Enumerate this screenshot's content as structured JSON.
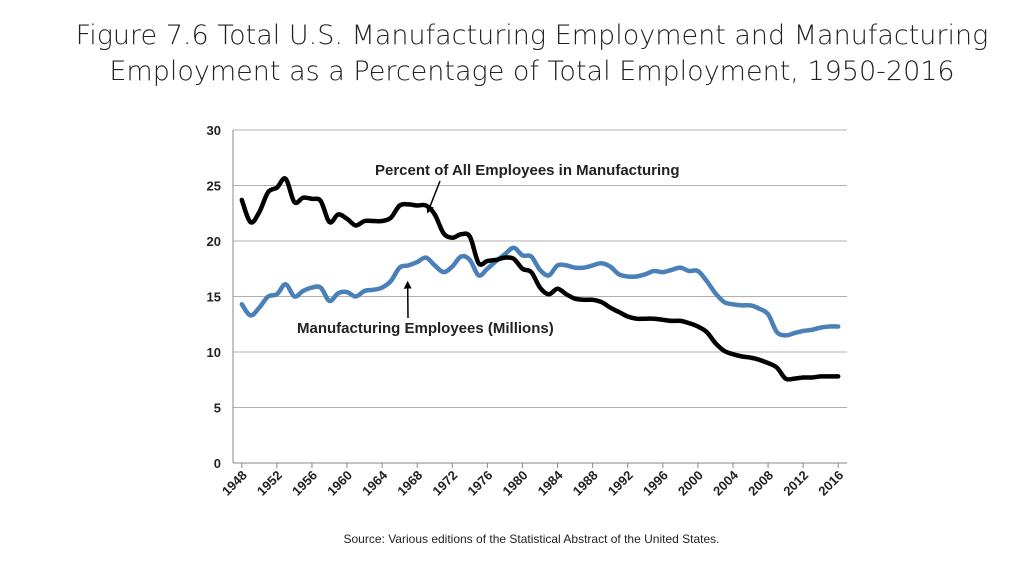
{
  "title_line1": "Figure 7.6 Total U.S. Manufacturing Employment and Manufacturing",
  "title_line2": "Employment as a Percentage of Total Employment, 1950-2016",
  "source": "Source: Various editions of the Statistical Abstract of the United States.",
  "colors": {
    "percent_series": "#000000",
    "employees_series": "#4a80b8",
    "grid": "#b0b0b0"
  },
  "chart_data": {
    "type": "line",
    "title": "Figure 7.6 Total U.S. Manufacturing Employment and Manufacturing Employment as a Percentage of Total Employment, 1950-2016",
    "xlabel": "",
    "ylabel": "",
    "xlim": [
      1947,
      2017
    ],
    "ylim": [
      0,
      30
    ],
    "y_ticks": [
      0,
      5,
      10,
      15,
      20,
      25,
      30
    ],
    "x_ticks": [
      "1948",
      "1952",
      "1956",
      "1960",
      "1964",
      "1968",
      "1972",
      "1976",
      "1980",
      "1984",
      "1988",
      "1992",
      "1996",
      "2000",
      "2004",
      "2008",
      "2012",
      "2016"
    ],
    "grid": true,
    "annotations": [
      {
        "text": "Percent of All Employees in Manufacturing",
        "points_to": {
          "x": 1969,
          "y": 23
        }
      },
      {
        "text": "Manufacturing Employees (Millions)",
        "points_to": {
          "x": 1966.8,
          "y": 16.6
        }
      }
    ],
    "series": [
      {
        "name": "Percent of All Employees in Manufacturing",
        "x": [
          1948,
          1949,
          1950,
          1951,
          1952,
          1953,
          1954,
          1955,
          1956,
          1957,
          1958,
          1959,
          1960,
          1961,
          1962,
          1963,
          1964,
          1965,
          1966,
          1967,
          1968,
          1969,
          1970,
          1971,
          1972,
          1973,
          1974,
          1975,
          1976,
          1977,
          1978,
          1979,
          1980,
          1981,
          1982,
          1983,
          1984,
          1985,
          1986,
          1987,
          1988,
          1989,
          1990,
          1991,
          1992,
          1993,
          1994,
          1995,
          1996,
          1997,
          1998,
          1999,
          2000,
          2001,
          2002,
          2003,
          2004,
          2005,
          2006,
          2007,
          2008,
          2009,
          2010,
          2011,
          2012,
          2013,
          2014,
          2015,
          2016
        ],
        "values": [
          23.7,
          21.7,
          22.6,
          24.4,
          24.8,
          25.6,
          23.5,
          23.9,
          23.8,
          23.6,
          21.7,
          22.4,
          22.0,
          21.4,
          21.8,
          21.8,
          21.8,
          22.1,
          23.2,
          23.3,
          23.2,
          23.2,
          22.4,
          20.7,
          20.3,
          20.6,
          20.4,
          18.0,
          18.2,
          18.3,
          18.5,
          18.4,
          17.5,
          17.2,
          15.8,
          15.2,
          15.7,
          15.2,
          14.8,
          14.7,
          14.7,
          14.5,
          14.0,
          13.6,
          13.2,
          13.0,
          13.0,
          13.0,
          12.9,
          12.8,
          12.8,
          12.6,
          12.3,
          11.8,
          10.8,
          10.1,
          9.8,
          9.6,
          9.5,
          9.3,
          9.0,
          8.6,
          7.6,
          7.6,
          7.7,
          7.7,
          7.8,
          7.8,
          7.8
        ]
      },
      {
        "name": "Manufacturing Employees (Millions)",
        "x": [
          1948,
          1949,
          1950,
          1951,
          1952,
          1953,
          1954,
          1955,
          1956,
          1957,
          1958,
          1959,
          1960,
          1961,
          1962,
          1963,
          1964,
          1965,
          1966,
          1967,
          1968,
          1969,
          1970,
          1971,
          1972,
          1973,
          1974,
          1975,
          1976,
          1977,
          1978,
          1979,
          1980,
          1981,
          1982,
          1983,
          1984,
          1985,
          1986,
          1987,
          1988,
          1989,
          1990,
          1991,
          1992,
          1993,
          1994,
          1995,
          1996,
          1997,
          1998,
          1999,
          2000,
          2001,
          2002,
          2003,
          2004,
          2005,
          2006,
          2007,
          2008,
          2009,
          2010,
          2011,
          2012,
          2013,
          2014,
          2015,
          2016
        ],
        "values": [
          14.3,
          13.3,
          14.0,
          15.0,
          15.2,
          16.1,
          15.0,
          15.5,
          15.8,
          15.8,
          14.6,
          15.3,
          15.4,
          15.0,
          15.5,
          15.6,
          15.8,
          16.4,
          17.6,
          17.8,
          18.1,
          18.5,
          17.8,
          17.2,
          17.7,
          18.6,
          18.3,
          16.9,
          17.5,
          18.2,
          18.8,
          19.4,
          18.7,
          18.6,
          17.4,
          16.9,
          17.8,
          17.8,
          17.6,
          17.6,
          17.8,
          18.0,
          17.7,
          17.0,
          16.8,
          16.8,
          17.0,
          17.3,
          17.2,
          17.4,
          17.6,
          17.3,
          17.3,
          16.4,
          15.3,
          14.5,
          14.3,
          14.2,
          14.2,
          13.9,
          13.4,
          11.8,
          11.5,
          11.7,
          11.9,
          12.0,
          12.2,
          12.3,
          12.3
        ]
      }
    ]
  }
}
